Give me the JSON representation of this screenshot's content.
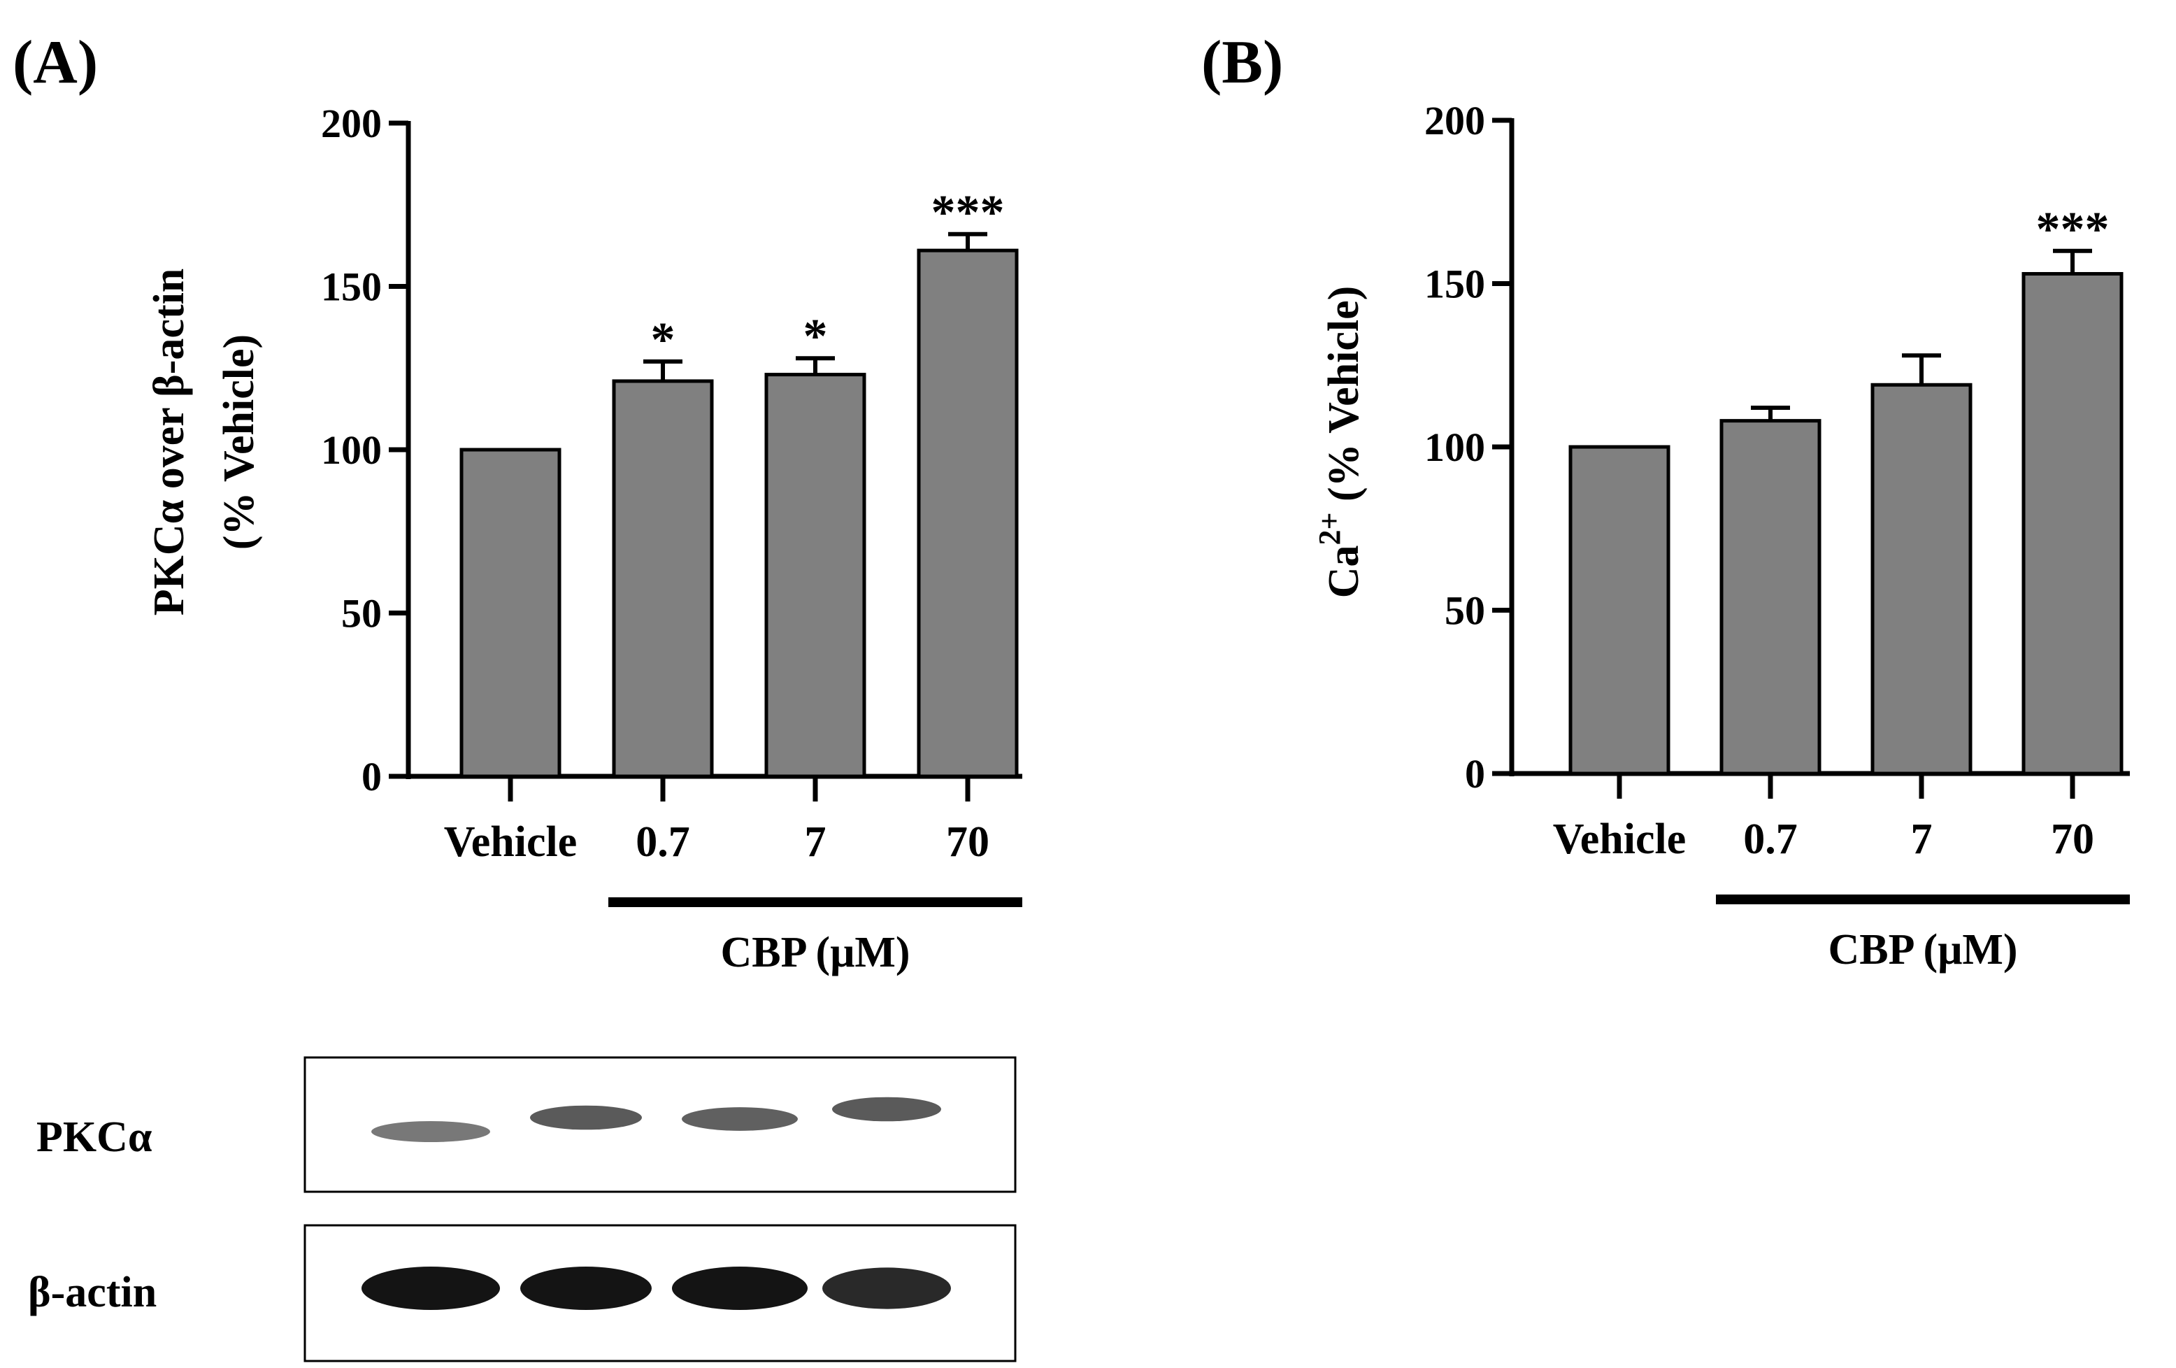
{
  "panels": [
    {
      "label": "(A)",
      "ylabel_lines": [
        "PKCα over β-actin",
        "(% Vehicle)"
      ],
      "group_label": "CBP (μM)"
    },
    {
      "label": "(B)",
      "ylabel_main": "Ca",
      "ylabel_sup": "2+",
      "ylabel_rest": " (% Vehicle)",
      "group_label": "CBP (μM)"
    }
  ],
  "blot": {
    "rows": [
      {
        "label": "PKCα",
        "intensities": [
          0.45,
          0.7,
          0.65,
          0.7
        ]
      },
      {
        "label": "β-actin",
        "intensities": [
          1.0,
          1.0,
          1.0,
          0.9
        ]
      }
    ]
  },
  "colors": {
    "bar": "#808080",
    "axis": "#000000",
    "blot_band": "#141414"
  },
  "chart_data": [
    {
      "type": "bar",
      "categories": [
        "Vehicle",
        "0.7",
        "7",
        "70"
      ],
      "values": [
        100,
        121,
        123,
        161
      ],
      "errors": [
        0,
        6,
        5,
        5
      ],
      "significance": [
        "",
        "*",
        "*",
        "***"
      ],
      "title": "",
      "xlabel": "CBP (μM)",
      "ylabel": "PKCα over β-actin (% Vehicle)",
      "ylim": [
        0,
        200
      ],
      "yticks": [
        0,
        50,
        100,
        150,
        200
      ],
      "grid": false
    },
    {
      "type": "bar",
      "categories": [
        "Vehicle",
        "0.7",
        "7",
        "70"
      ],
      "values": [
        100,
        108,
        119,
        153
      ],
      "errors": [
        0,
        4,
        9,
        7
      ],
      "significance": [
        "",
        "",
        "",
        "***"
      ],
      "title": "",
      "xlabel": "CBP (μM)",
      "ylabel": "Ca2+ (% Vehicle)",
      "ylim": [
        0,
        200
      ],
      "yticks": [
        0,
        50,
        100,
        150,
        200
      ],
      "grid": false
    }
  ]
}
